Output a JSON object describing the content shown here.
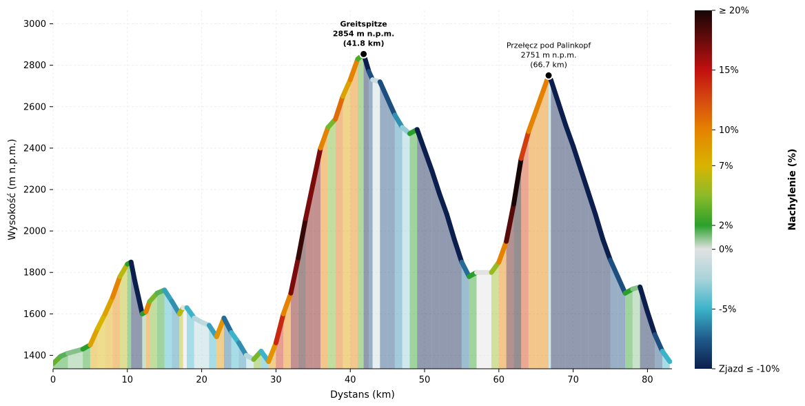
{
  "chart_data": {
    "type": "area",
    "xlabel": "Dystans (km)",
    "ylabel": "Wysokość (m n.p.m.)",
    "xlim": [
      0,
      83.3
    ],
    "ylim": [
      1335,
      3065
    ],
    "x_ticks": [
      0,
      10,
      20,
      30,
      40,
      50,
      60,
      70,
      80
    ],
    "y_ticks": [
      1400,
      1600,
      1800,
      2000,
      2200,
      2400,
      2600,
      2800,
      3000
    ],
    "grid": true,
    "profile": {
      "x": [
        0,
        1,
        2,
        3,
        4,
        5,
        6,
        7,
        8,
        9,
        10,
        10.5,
        11,
        12,
        12.5,
        13,
        14,
        15,
        16,
        17,
        17.5,
        18,
        19,
        20,
        21,
        22,
        23,
        24,
        25,
        26,
        27,
        28,
        29,
        30,
        31,
        32,
        33,
        34,
        35,
        36,
        37,
        38,
        39,
        40,
        41,
        41.8,
        42.5,
        43,
        44,
        45,
        46,
        47,
        48,
        49,
        50,
        51,
        52,
        53,
        54,
        55,
        56,
        57,
        58,
        59,
        60,
        61,
        62,
        63,
        64,
        65,
        66,
        66.7,
        67,
        68,
        69,
        70,
        71,
        72,
        73,
        74,
        75,
        76,
        77,
        78,
        79,
        80,
        81,
        82,
        83
      ],
      "y": [
        1360,
        1395,
        1410,
        1420,
        1430,
        1450,
        1530,
        1600,
        1680,
        1780,
        1840,
        1850,
        1760,
        1600,
        1610,
        1660,
        1700,
        1715,
        1660,
        1600,
        1630,
        1630,
        1580,
        1560,
        1545,
        1490,
        1580,
        1510,
        1460,
        1400,
        1380,
        1420,
        1370,
        1460,
        1600,
        1700,
        1870,
        2060,
        2230,
        2400,
        2500,
        2540,
        2650,
        2730,
        2830,
        2854,
        2770,
        2730,
        2720,
        2640,
        2560,
        2500,
        2470,
        2490,
        2390,
        2290,
        2180,
        2080,
        1960,
        1850,
        1780,
        1800,
        1800,
        1800,
        1850,
        1950,
        2130,
        2350,
        2480,
        2580,
        2680,
        2751,
        2730,
        2620,
        2510,
        2410,
        2300,
        2190,
        2080,
        1960,
        1860,
        1780,
        1700,
        1720,
        1730,
        1610,
        1500,
        1420,
        1370
      ]
    },
    "gradient_bands": {
      "x": [
        0,
        2,
        4,
        5,
        6,
        7,
        8,
        9,
        10,
        10.5,
        11,
        12,
        12.5,
        13,
        14,
        15,
        16,
        17,
        17.5,
        18,
        19,
        20,
        21,
        22,
        23,
        24,
        25,
        26,
        27,
        28,
        29,
        30,
        31,
        32,
        33,
        34,
        35,
        36,
        37,
        38,
        39,
        40,
        41,
        41.8,
        42.5,
        43,
        44,
        45,
        46,
        47,
        48,
        49,
        50,
        51,
        52,
        53,
        54,
        55,
        56,
        57,
        58,
        59,
        60,
        61,
        62,
        63,
        64,
        65,
        66,
        66.7,
        67,
        68,
        69,
        70,
        71,
        72,
        73,
        74,
        75,
        76,
        77,
        78,
        79,
        80,
        81,
        82,
        83
      ],
      "slope_percent": [
        2,
        1,
        2,
        8,
        7,
        8,
        10,
        6,
        2,
        -10,
        -12,
        1,
        10,
        4,
        2,
        -5,
        -6,
        6,
        0,
        -5,
        -2,
        -2,
        -5,
        9,
        -7,
        -5,
        -6,
        -2,
        4,
        -5,
        9,
        14,
        10,
        17,
        19,
        17,
        17,
        10,
        4,
        11,
        8,
        10,
        3,
        -12,
        -8,
        -1,
        -8,
        -8,
        -6,
        -3,
        2,
        -10,
        -10,
        -11,
        -10,
        -12,
        -11,
        -7,
        2,
        0,
        0,
        5,
        10,
        18,
        22,
        13,
        10,
        10,
        10,
        -3,
        -11,
        -11,
        -10,
        -11,
        -11,
        -11,
        -12,
        -10,
        -8,
        -8,
        2,
        1,
        -12,
        -11,
        -8,
        -5,
        -5
      ]
    },
    "colorbar": {
      "label": "Nachylenie (%)",
      "ticks": [
        {
          "value": 20,
          "label": "≥ 20%"
        },
        {
          "value": 15,
          "label": "15%"
        },
        {
          "value": 10,
          "label": "10%"
        },
        {
          "value": 7,
          "label": "7%"
        },
        {
          "value": 2,
          "label": "2%"
        },
        {
          "value": 0,
          "label": "0%"
        },
        {
          "value": -5,
          "label": "-5%"
        },
        {
          "value": -10,
          "label": "Zjazd ≤ -10%"
        }
      ],
      "range": [
        -10,
        20
      ],
      "stops": [
        {
          "value": -10,
          "color": "#0b1e4d"
        },
        {
          "value": -7.5,
          "color": "#205a8c"
        },
        {
          "value": -5,
          "color": "#3bb3c8"
        },
        {
          "value": -2.5,
          "color": "#a8d3da"
        },
        {
          "value": 0,
          "color": "#e2e2e2"
        },
        {
          "value": 2,
          "color": "#2aa02b"
        },
        {
          "value": 4.5,
          "color": "#8bbb2a"
        },
        {
          "value": 7,
          "color": "#d8b400"
        },
        {
          "value": 10,
          "color": "#e58200"
        },
        {
          "value": 12.5,
          "color": "#d64a10"
        },
        {
          "value": 15,
          "color": "#c21010"
        },
        {
          "value": 17.5,
          "color": "#6a0b0b"
        },
        {
          "value": 20,
          "color": "#160606"
        }
      ]
    },
    "annotations": [
      {
        "x": 41.8,
        "y": 2854,
        "lines": [
          "Greitspitze",
          "2854 m n.p.m.",
          "(41.8 km)"
        ],
        "bold": true
      },
      {
        "x": 66.7,
        "y": 2751,
        "lines": [
          "Przełęcz pod Palinkopf",
          "2751 m n.p.m.",
          "(66.7 km)"
        ],
        "bold": false
      }
    ]
  }
}
